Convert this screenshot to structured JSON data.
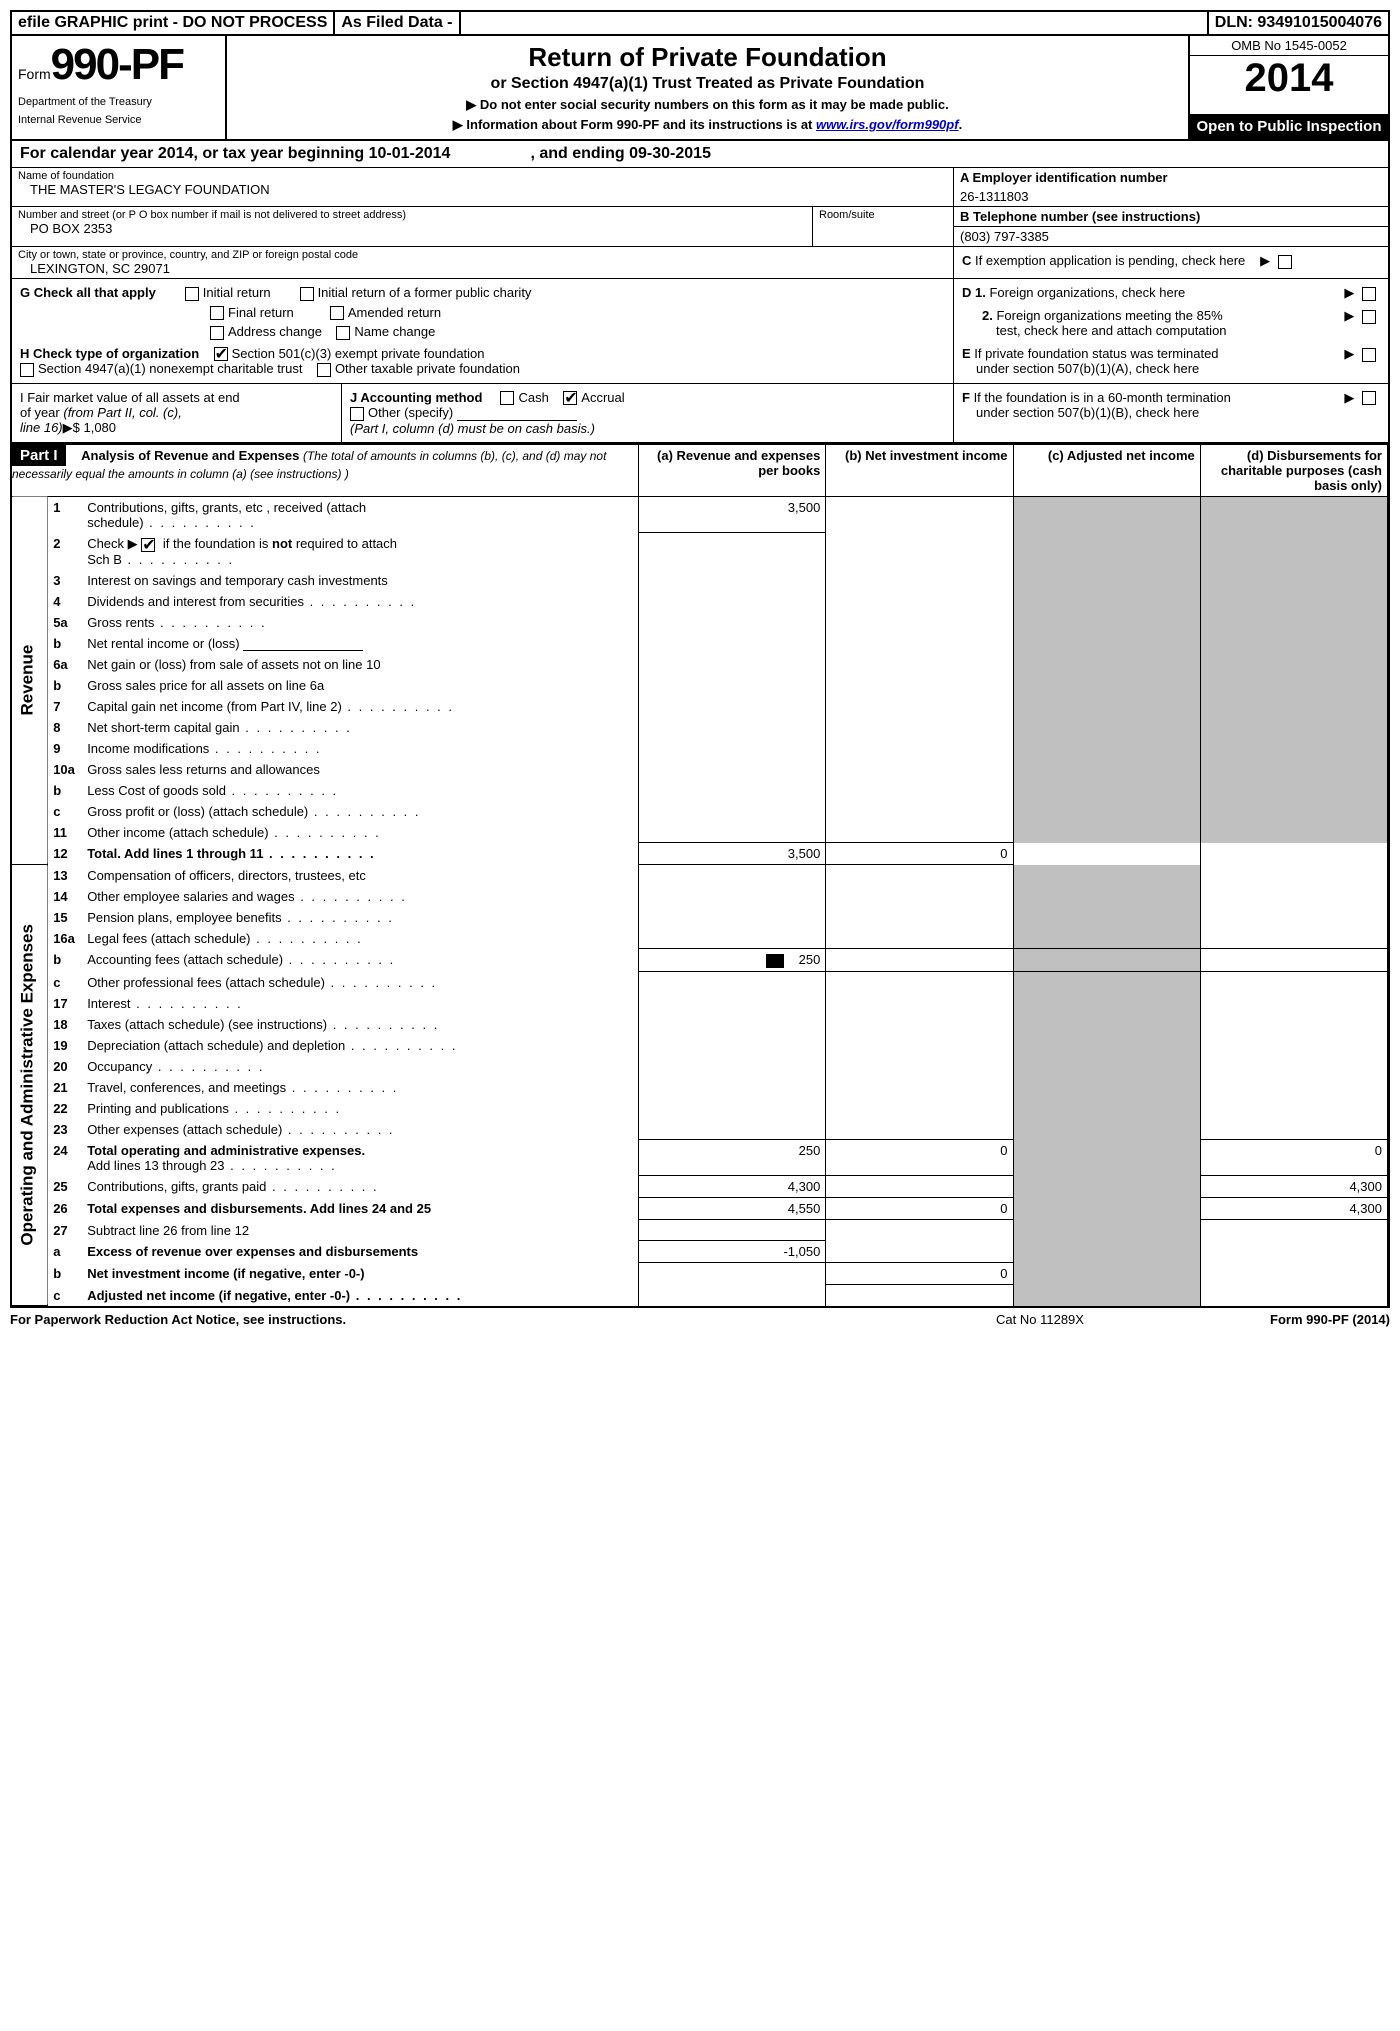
{
  "top_bar": {
    "left": "efile GRAPHIC print - DO NOT PROCESS",
    "mid": "As Filed Data -",
    "right": "DLN: 93491015004076"
  },
  "header": {
    "form_prefix": "Form",
    "form_number": "990-PF",
    "dept1": "Department of the Treasury",
    "dept2": "Internal Revenue Service",
    "title_main": "Return of Private Foundation",
    "title_sub": "or Section 4947(a)(1) Trust Treated as Private Foundation",
    "title_note1": "▶ Do not enter social security numbers on this form as it may be made public.",
    "title_note2_pre": "▶ Information about Form 990-PF and its instructions is at ",
    "title_note2_link": "www.irs.gov/form990pf",
    "title_note2_post": ".",
    "omb": "OMB No 1545-0052",
    "year": "2014",
    "open_public": "Open to Public Inspection"
  },
  "cal_year": {
    "text_pre": "For calendar year 2014, or tax year beginning ",
    "begin": "10-01-2014",
    "text_mid": " , and ending ",
    "end": "09-30-2015"
  },
  "info": {
    "name_lbl": "Name of foundation",
    "name_val": "THE MASTER'S LEGACY FOUNDATION",
    "ein_lbl": "A Employer identification number",
    "ein_val": "26-1311803",
    "addr_lbl": "Number and street (or P O  box number if mail is not delivered to street address)",
    "suite_lbl": "Room/suite",
    "addr_val": "PO BOX 2353",
    "tel_lbl": "B Telephone number (see instructions)",
    "tel_val": "(803) 797-3385",
    "city_lbl": "City or town, state or province, country, and ZIP or foreign postal code",
    "city_val": "LEXINGTON, SC  29071",
    "c_lbl": "C If exemption application is pending, check here"
  },
  "g_section": {
    "g_lbl": "G Check all that apply",
    "opts": [
      "Initial return",
      "Initial return of a former public charity",
      "Final return",
      "Amended return",
      "Address change",
      "Name change"
    ],
    "h_lbl": "H Check type of organization",
    "h1": "Section 501(c)(3) exempt private foundation",
    "h2": "Section 4947(a)(1) nonexempt charitable trust",
    "h3": "Other taxable private foundation",
    "d1": "D 1.  Foreign organizations, check here",
    "d2a": "2.  Foreign organizations meeting the 85%",
    "d2b": "test, check here and attach computation",
    "e_a": "E  If private foundation status was terminated",
    "e_b": "under section 507(b)(1)(A), check here"
  },
  "ij_section": {
    "i_a": "I Fair market value of all assets at end",
    "i_b": "of year (from Part II, col. (c),",
    "i_c": "line 16)▶$ 1,080",
    "j_lbl": "J Accounting method",
    "j_cash": "Cash",
    "j_accrual": "Accrual",
    "j_other": "Other (specify)",
    "j_note": "(Part I, column (d) must be on cash basis.)",
    "f_a": "F  If the foundation is in a 60-month termination",
    "f_b": "under section 507(b)(1)(B), check here"
  },
  "part1": {
    "label": "Part I",
    "title": "Analysis of Revenue and Expenses",
    "title_note": "(The total of amounts in columns (b), (c), and (d) may not necessarily equal the amounts in column (a) (see instructions) )",
    "col_a": "(a) Revenue and expenses per books",
    "col_b": "(b) Net investment income",
    "col_c": "(c) Adjusted net income",
    "col_d": "(d) Disbursements for charitable purposes (cash basis only)"
  },
  "side_labels": {
    "revenue": "Revenue",
    "expenses": "Operating and Administrative Expenses"
  },
  "rows": [
    {
      "n": "1",
      "d": "Contributions, gifts, grants, etc , received (attach",
      "d2": "schedule)",
      "a": "3,500",
      "dots2": true
    },
    {
      "n": "2",
      "d": "Check ▶",
      "d_after": " if the foundation is not required to attach",
      "d2": "Sch B",
      "chk": true,
      "dots2": true,
      "notreq_bold": "not"
    },
    {
      "n": "3",
      "d": "Interest on savings and temporary cash investments"
    },
    {
      "n": "4",
      "d": "Dividends and interest from securities",
      "dots": true
    },
    {
      "n": "5a",
      "d": "Gross rents",
      "dots": true
    },
    {
      "n": "b",
      "d": "Net rental income or (loss)",
      "uline": true
    },
    {
      "n": "6a",
      "d": "Net gain or (loss) from sale of assets not on line 10"
    },
    {
      "n": "b",
      "d": "Gross sales price for all assets on line 6a"
    },
    {
      "n": "7",
      "d": "Capital gain net income (from Part IV, line 2)",
      "dots": true
    },
    {
      "n": "8",
      "d": "Net short-term capital gain",
      "dots": true
    },
    {
      "n": "9",
      "d": "Income modifications",
      "dots": true
    },
    {
      "n": "10a",
      "d": "Gross sales less returns and allowances"
    },
    {
      "n": "b",
      "d": "Less  Cost of goods sold",
      "dots": true,
      "short": true
    },
    {
      "n": "c",
      "d": "Gross profit or (loss) (attach schedule)",
      "dots": true
    },
    {
      "n": "11",
      "d": "Other income (attach schedule)",
      "dots": true
    },
    {
      "n": "12",
      "d": "Total. Add lines 1 through 11",
      "dots": true,
      "bold": true,
      "a": "3,500",
      "b": "0"
    },
    {
      "n": "13",
      "d": "Compensation of officers, directors, trustees, etc"
    },
    {
      "n": "14",
      "d": "Other employee salaries and wages",
      "dots": true
    },
    {
      "n": "15",
      "d": "Pension plans, employee benefits",
      "dots": true
    },
    {
      "n": "16a",
      "d": "Legal fees (attach schedule)",
      "dots": true
    },
    {
      "n": "b",
      "d": "Accounting fees (attach schedule)",
      "dots": true,
      "a": "250",
      "icon": true
    },
    {
      "n": "c",
      "d": "Other professional fees (attach schedule)",
      "dots": true
    },
    {
      "n": "17",
      "d": "Interest",
      "dots": true
    },
    {
      "n": "18",
      "d": "Taxes (attach schedule) (see instructions)",
      "dots": true
    },
    {
      "n": "19",
      "d": "Depreciation (attach schedule) and depletion",
      "dots": true
    },
    {
      "n": "20",
      "d": "Occupancy",
      "dots": true
    },
    {
      "n": "21",
      "d": "Travel, conferences, and meetings",
      "dots": true
    },
    {
      "n": "22",
      "d": "Printing and publications",
      "dots": true
    },
    {
      "n": "23",
      "d": "Other expenses (attach schedule)",
      "dots": true
    },
    {
      "n": "24",
      "d": "Total operating and administrative expenses.",
      "bold": true,
      "d2": "Add lines 13 through 23",
      "dots2": true,
      "a": "250",
      "b": "0",
      "dd": "0"
    },
    {
      "n": "25",
      "d": "Contributions, gifts, grants paid",
      "dots": true,
      "a": "4,300",
      "dd": "4,300"
    },
    {
      "n": "26",
      "d": "Total expenses and disbursements. Add lines 24 and 25",
      "bold": true,
      "a": "4,550",
      "b": "0",
      "dd": "4,300"
    },
    {
      "n": "27",
      "d": "Subtract line 26 from line 12"
    },
    {
      "n": "a",
      "d": "Excess of revenue over expenses and disbursements",
      "bold": true,
      "a": "-1,050"
    },
    {
      "n": "b",
      "d": "Net investment income (if negative, enter -0-)",
      "bold": true,
      "b": "0"
    },
    {
      "n": "c",
      "d": "Adjusted net income (if negative, enter -0-)",
      "bold": true,
      "dots": true
    }
  ],
  "footer": {
    "left": "For Paperwork Reduction Act Notice, see instructions.",
    "mid": "Cat No 11289X",
    "right_pre": "Form ",
    "right_bold": "990-PF",
    "right_post": " (2014)"
  }
}
